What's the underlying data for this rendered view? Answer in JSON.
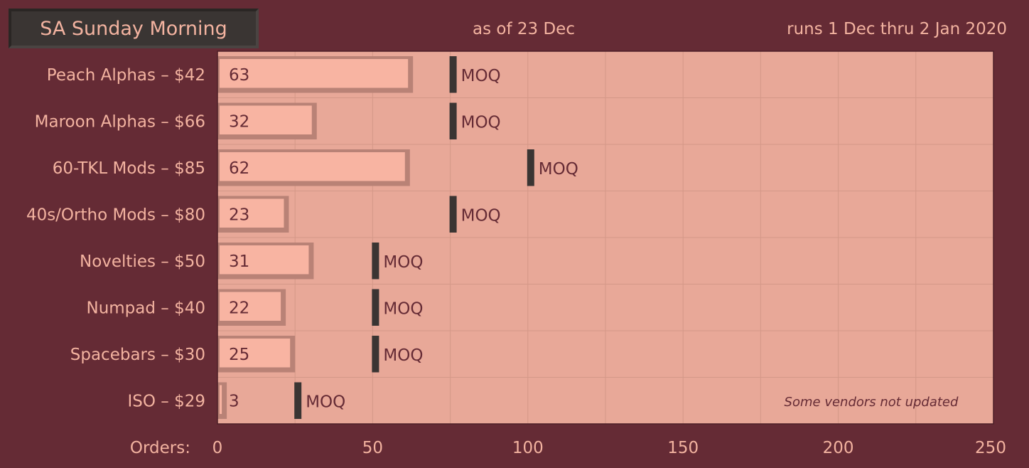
{
  "header": {
    "title": "SA Sunday Morning",
    "as_of": "as of 23 Dec",
    "runs": "runs 1 Dec thru 2 Jan 2020"
  },
  "chart_data": {
    "type": "bar",
    "orientation": "horizontal",
    "categories": [
      "Peach Alphas – $42",
      "Maroon Alphas – $66",
      "60-TKL Mods – $85",
      "40s/Ortho Mods – $80",
      "Novelties – $50",
      "Numpad – $40",
      "Spacebars – $30",
      "ISO – $29"
    ],
    "values": [
      63,
      32,
      62,
      23,
      31,
      22,
      25,
      3
    ],
    "moq": [
      75,
      75,
      100,
      75,
      50,
      50,
      50,
      25
    ],
    "moq_label": "MOQ",
    "xlabel": "Orders:",
    "xlim": [
      0,
      250
    ],
    "xticks": [
      0,
      50,
      100,
      150,
      200,
      250
    ],
    "grid": true,
    "annotation": "Some vendors not updated",
    "colors": {
      "background": "#652b35",
      "plot_area": "#e8a898",
      "bar": "#f8b4a2",
      "bar_bevel": "#b98276",
      "moq_marker": "#3a3533",
      "grid": "#d49888"
    }
  }
}
